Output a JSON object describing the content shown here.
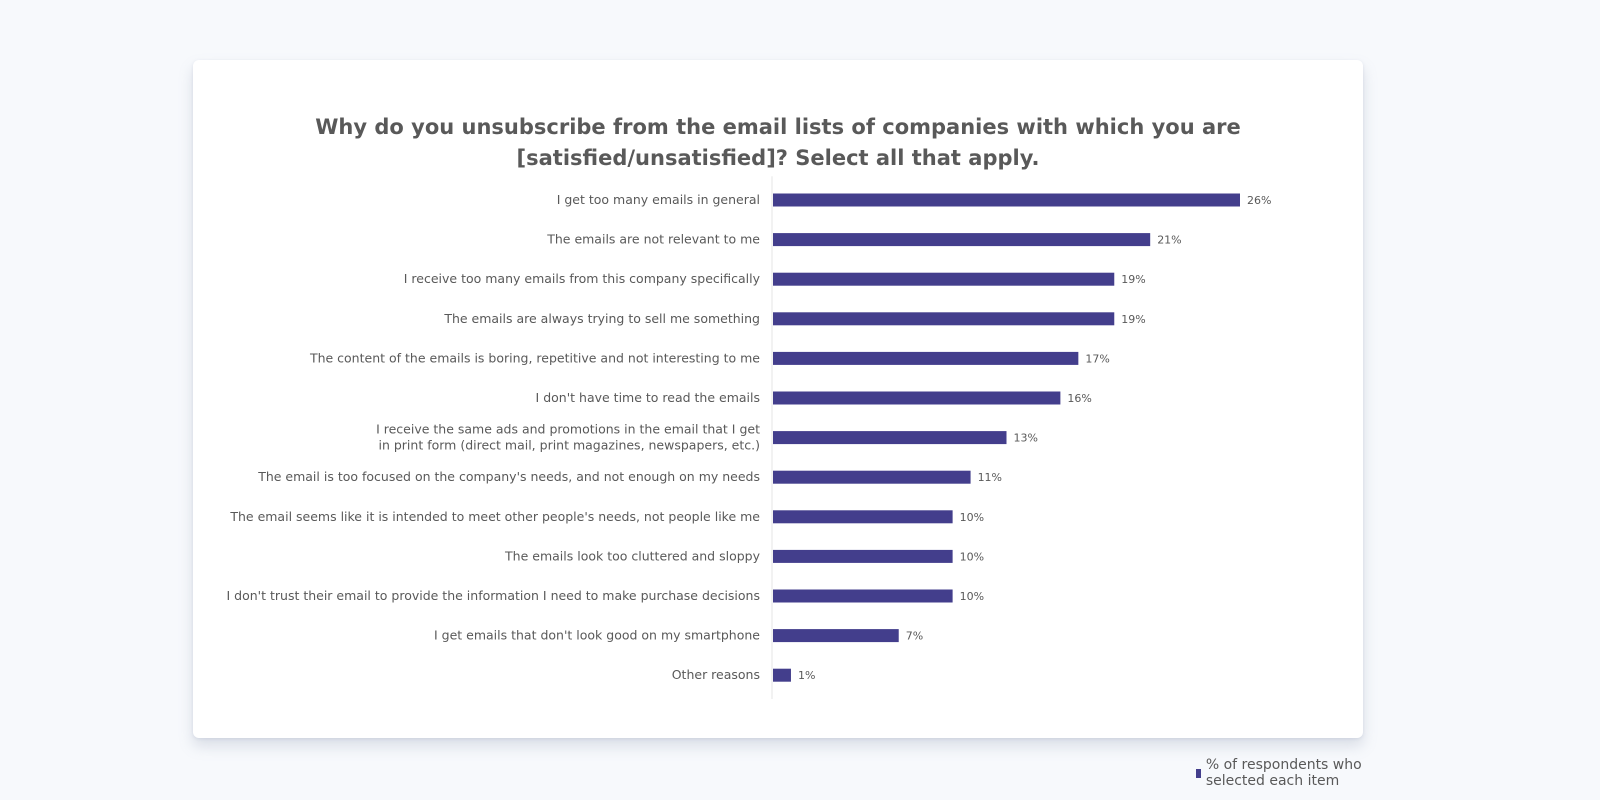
{
  "chart_data": {
    "type": "bar",
    "orientation": "horizontal",
    "title_lines": [
      "Why do you unsubscribe from the email lists of companies with which you are",
      "[satisfied/unsatisfied]? Select all that apply."
    ],
    "categories": [
      [
        "I get too many emails in general"
      ],
      [
        "The emails are not relevant to me"
      ],
      [
        "I receive too many emails from this company specifically"
      ],
      [
        "The emails are always trying to sell me something"
      ],
      [
        "The content of the emails is boring, repetitive and not interesting to me"
      ],
      [
        "I don't have time to read the emails"
      ],
      [
        "I receive the same ads and promotions in the email that I get",
        "in print form (direct mail, print magazines, newspapers, etc.)"
      ],
      [
        "The email is too focused on the company's needs, and not enough on my needs"
      ],
      [
        "The email seems like it is intended to meet other people's needs, not people like me"
      ],
      [
        "The emails look too cluttered and sloppy"
      ],
      [
        "I don't trust their email to provide the information I need to make purchase decisions"
      ],
      [
        "I get emails that don't look good on my smartphone"
      ],
      [
        "Other reasons"
      ]
    ],
    "series": [
      {
        "name": "% of respondents who selected each item",
        "values": [
          26,
          21,
          19,
          19,
          17,
          16,
          13,
          11,
          10,
          10,
          10,
          7,
          1
        ],
        "labels": [
          "26%",
          "21%",
          "19%",
          "19%",
          "17%",
          "16%",
          "13%",
          "11%",
          "10%",
          "10%",
          "10%",
          "7%",
          "1%"
        ],
        "color": "#433e8c"
      }
    ],
    "xlim": [
      0,
      26
    ],
    "grid": false,
    "legend_position": "bottom-right"
  }
}
